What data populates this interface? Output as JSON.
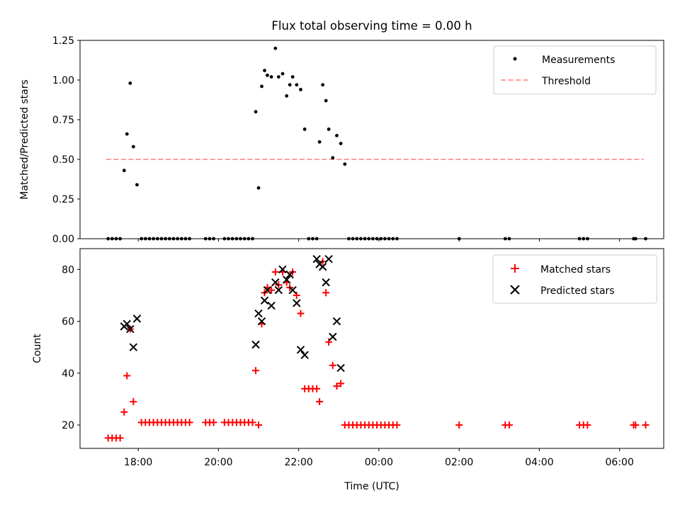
{
  "chart_data": {
    "title": "Flux total observing time = 0.00 h",
    "x_tick_labels": [
      "18:00",
      "20:00",
      "22:00",
      "00:00",
      "02:00",
      "04:00",
      "06:00"
    ],
    "x_tick_hours": [
      18,
      20,
      22,
      24,
      26,
      28,
      30
    ],
    "xlim": [
      16.55,
      31.1
    ],
    "xlabel": "Time (UTC)",
    "panels": [
      {
        "type": "scatter",
        "ylabel": "Matched/Predicted stars",
        "ylim": [
          0,
          1.25
        ],
        "y_ticks": [
          0,
          0.25,
          0.5,
          0.75,
          1.0,
          1.25
        ],
        "y_tick_labels": [
          "0.00",
          "0.25",
          "0.50",
          "0.75",
          "1.00",
          "1.25"
        ],
        "legend": [
          "Measurements",
          "Threshold"
        ],
        "threshold": {
          "name": "Threshold",
          "value": 0.5,
          "x_range": [
            17.2,
            30.6
          ],
          "color": "#ff7f7f"
        },
        "series": [
          {
            "name": "Measurements",
            "color": "#000000",
            "marker": "dot",
            "x": [
              17.25,
              17.35,
              17.45,
              17.55,
              17.65,
              17.72,
              17.8,
              17.88,
              17.97,
              18.08,
              18.18,
              18.28,
              18.38,
              18.48,
              18.58,
              18.68,
              18.78,
              18.88,
              18.98,
              19.08,
              19.18,
              19.28,
              19.68,
              19.78,
              19.88,
              20.15,
              20.25,
              20.35,
              20.45,
              20.55,
              20.65,
              20.75,
              20.85,
              20.93,
              21.0,
              21.08,
              21.15,
              21.22,
              21.32,
              21.42,
              21.5,
              21.6,
              21.7,
              21.78,
              21.85,
              21.95,
              22.05,
              22.15,
              22.25,
              22.35,
              22.45,
              22.52,
              22.6,
              22.68,
              22.75,
              22.85,
              22.95,
              23.05,
              23.15,
              23.25,
              23.35,
              23.45,
              23.55,
              23.65,
              23.75,
              23.85,
              23.95,
              24.05,
              24.15,
              24.25,
              24.35,
              24.45,
              26.0,
              27.15,
              27.25,
              29.0,
              29.1,
              29.2,
              30.35,
              30.4,
              30.65
            ],
            "y": [
              0,
              0,
              0,
              0,
              0.43,
              0.66,
              0.98,
              0.58,
              0.34,
              0,
              0,
              0,
              0,
              0,
              0,
              0,
              0,
              0,
              0,
              0,
              0,
              0,
              0,
              0,
              0,
              0,
              0,
              0,
              0,
              0,
              0,
              0,
              0,
              0.8,
              0.32,
              0.96,
              1.06,
              1.03,
              1.02,
              1.2,
              1.02,
              1.04,
              0.9,
              0.97,
              1.02,
              0.97,
              0.94,
              0.69,
              0,
              0,
              0,
              0.61,
              0.97,
              0.87,
              0.69,
              0.51,
              0.65,
              0.6,
              0.47,
              0,
              0,
              0,
              0,
              0,
              0,
              0,
              0,
              0,
              0,
              0,
              0,
              0,
              0,
              0,
              0,
              0,
              0,
              0,
              0,
              0,
              0
            ]
          }
        ]
      },
      {
        "type": "scatter",
        "ylabel": "Count",
        "ylim": [
          11,
          88
        ],
        "y_ticks": [
          20,
          40,
          60,
          80
        ],
        "y_tick_labels": [
          "20",
          "40",
          "60",
          "80"
        ],
        "legend": [
          "Matched stars",
          "Predicted stars"
        ],
        "series": [
          {
            "name": "Matched stars",
            "color": "#ff0000",
            "marker": "plus",
            "x": [
              17.25,
              17.35,
              17.45,
              17.55,
              17.65,
              17.72,
              17.8,
              17.88,
              18.08,
              18.18,
              18.28,
              18.38,
              18.48,
              18.58,
              18.68,
              18.78,
              18.88,
              18.98,
              19.08,
              19.18,
              19.28,
              19.68,
              19.78,
              19.88,
              20.15,
              20.25,
              20.35,
              20.45,
              20.55,
              20.65,
              20.75,
              20.85,
              20.93,
              21.0,
              21.08,
              21.15,
              21.22,
              21.32,
              21.42,
              21.5,
              21.6,
              21.7,
              21.78,
              21.85,
              21.95,
              22.05,
              22.15,
              22.25,
              22.35,
              22.45,
              22.52,
              22.6,
              22.68,
              22.75,
              22.85,
              22.95,
              23.05,
              23.15,
              23.25,
              23.35,
              23.45,
              23.55,
              23.65,
              23.75,
              23.85,
              23.95,
              24.05,
              24.15,
              24.25,
              24.35,
              24.45,
              26.0,
              27.15,
              27.25,
              29.0,
              29.1,
              29.2,
              30.35,
              30.4,
              30.65
            ],
            "y": [
              15,
              15,
              15,
              15,
              25,
              39,
              57,
              29,
              21,
              21,
              21,
              21,
              21,
              21,
              21,
              21,
              21,
              21,
              21,
              21,
              21,
              21,
              21,
              21,
              21,
              21,
              21,
              21,
              21,
              21,
              21,
              21,
              41,
              20,
              59,
              71,
              73,
              72,
              79,
              74,
              79,
              75,
              73,
              79,
              70,
              63,
              34,
              34,
              34,
              34,
              29,
              83,
              71,
              52,
              43,
              35,
              36,
              20,
              20,
              20,
              20,
              20,
              20,
              20,
              20,
              20,
              20,
              20,
              20,
              20,
              20,
              20,
              20,
              20,
              20,
              20,
              20,
              20,
              20,
              20
            ]
          },
          {
            "name": "Predicted stars",
            "color": "#000000",
            "marker": "x",
            "x": [
              17.65,
              17.72,
              17.8,
              17.88,
              17.97,
              20.93,
              21.0,
              21.08,
              21.15,
              21.22,
              21.32,
              21.42,
              21.5,
              21.6,
              21.7,
              21.78,
              21.85,
              21.95,
              22.05,
              22.15,
              22.45,
              22.52,
              22.6,
              22.68,
              22.75,
              22.85,
              22.95,
              23.05
            ],
            "y": [
              58,
              59,
              57,
              50,
              61,
              51,
              63,
              60,
              68,
              72,
              66,
              75,
              72,
              80,
              76,
              78,
              72,
              67,
              49,
              47,
              84,
              82,
              81,
              75,
              84,
              54,
              60,
              42
            ]
          }
        ]
      }
    ]
  }
}
